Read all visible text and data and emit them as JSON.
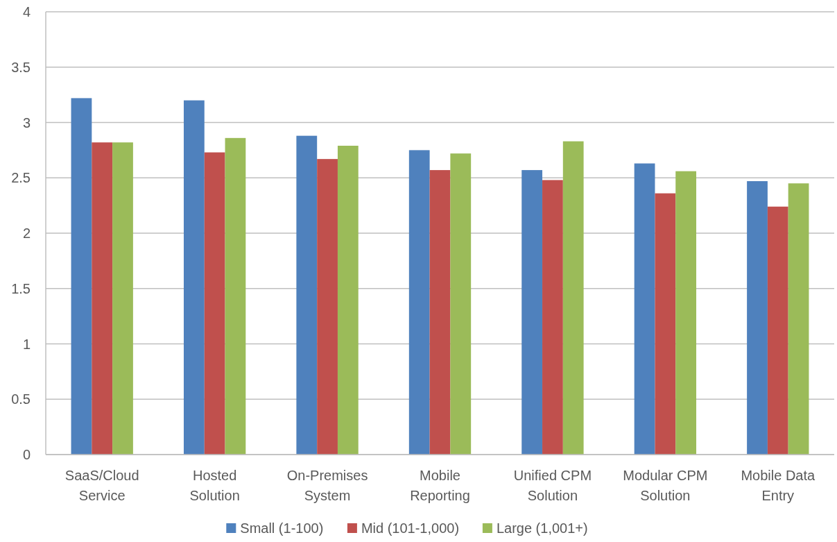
{
  "chart_data": {
    "type": "bar",
    "categories": [
      "SaaS/Cloud Service",
      "Hosted Solution",
      "On-Premises System",
      "Mobile Reporting",
      "Unified CPM Solution",
      "Modular CPM Solution",
      "Mobile Data Entry"
    ],
    "series": [
      {
        "name": "Small (1-100)",
        "color": "#4f81bd",
        "values": [
          3.22,
          3.2,
          2.88,
          2.75,
          2.57,
          2.63,
          2.47
        ]
      },
      {
        "name": "Mid (101-1,000)",
        "color": "#c0504d",
        "values": [
          2.82,
          2.73,
          2.67,
          2.57,
          2.48,
          2.36,
          2.24
        ]
      },
      {
        "name": "Large (1,001+)",
        "color": "#9bbb59",
        "values": [
          2.82,
          2.86,
          2.79,
          2.72,
          2.83,
          2.56,
          2.45
        ]
      }
    ],
    "ylim": [
      0,
      4
    ],
    "yticks": [
      0,
      0.5,
      1,
      1.5,
      2,
      2.5,
      3,
      3.5,
      4
    ],
    "grid": "y",
    "legend": "bottom"
  }
}
